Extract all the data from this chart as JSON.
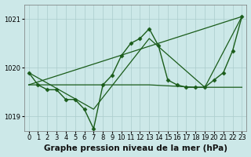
{
  "xlabel": "Graphe pression niveau de la mer (hPa)",
  "bg_color": "#cce8e8",
  "grid_color": "#aacccc",
  "line_color": "#1a5c1a",
  "xlim": [
    -0.5,
    23.5
  ],
  "ylim": [
    1018.7,
    1021.3
  ],
  "yticks": [
    1019,
    1020,
    1021
  ],
  "xticks": [
    0,
    1,
    2,
    3,
    4,
    5,
    6,
    7,
    8,
    9,
    10,
    11,
    12,
    13,
    14,
    15,
    16,
    17,
    18,
    19,
    20,
    21,
    22,
    23
  ],
  "series": [
    {
      "x": [
        0,
        1,
        2,
        3,
        4,
        5,
        6,
        7,
        8,
        9,
        10,
        11,
        12,
        13,
        14,
        15,
        16,
        17,
        18,
        19,
        20,
        21,
        22,
        23
      ],
      "y": [
        1019.9,
        1019.65,
        1019.55,
        1019.55,
        1019.35,
        1019.35,
        1019.15,
        1018.75,
        1019.65,
        1019.85,
        1020.25,
        1020.5,
        1020.6,
        1020.8,
        1020.45,
        1019.75,
        1019.65,
        1019.6,
        1019.6,
        1019.6,
        1019.75,
        1019.9,
        1020.35,
        1021.05
      ],
      "marker": "D",
      "markersize": 2.5,
      "linewidth": 1.0
    },
    {
      "x": [
        0,
        23
      ],
      "y": [
        1019.65,
        1021.05
      ],
      "marker": null,
      "markersize": 0,
      "linewidth": 0.9
    },
    {
      "x": [
        0,
        13,
        18,
        23
      ],
      "y": [
        1019.65,
        1019.65,
        1019.6,
        1019.6
      ],
      "marker": null,
      "markersize": 0,
      "linewidth": 0.9
    },
    {
      "x": [
        0,
        7,
        13,
        19,
        23
      ],
      "y": [
        1019.9,
        1019.15,
        1020.6,
        1019.6,
        1021.05
      ],
      "marker": null,
      "markersize": 0,
      "linewidth": 0.9
    }
  ],
  "xlabel_fontsize": 7.5,
  "tick_fontsize": 6.0
}
